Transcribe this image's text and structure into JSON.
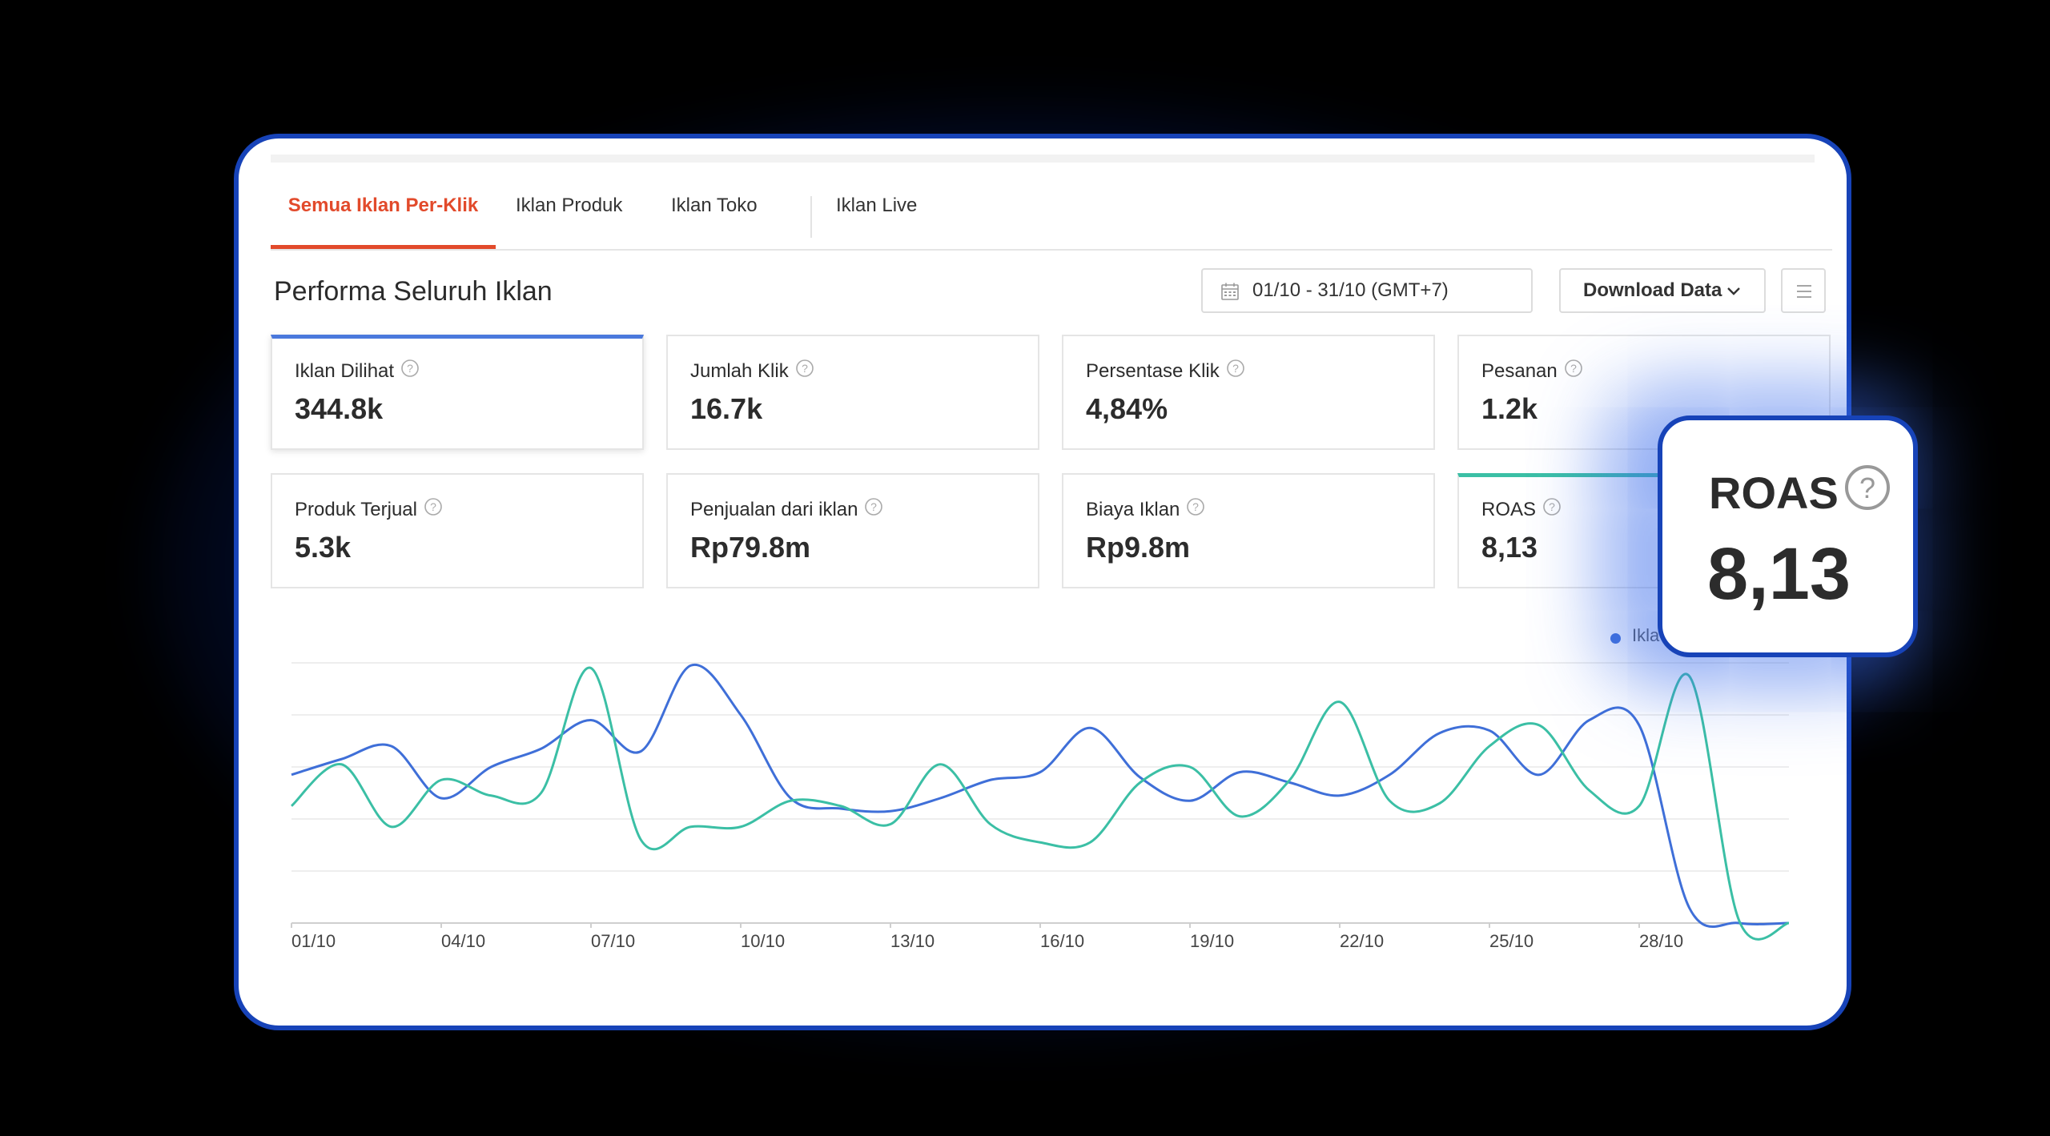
{
  "tabs": [
    {
      "label": "Semua Iklan Per-Klik",
      "active": true
    },
    {
      "label": "Iklan Produk"
    },
    {
      "label": "Iklan Toko"
    },
    {
      "label": "Iklan Live"
    }
  ],
  "header": {
    "title": "Performa Seluruh Iklan",
    "date_range": "01/10 - 31/10 (GMT+7)",
    "download_label": "Download Data"
  },
  "metrics": [
    {
      "label": "Iklan Dilihat",
      "value": "344.8k",
      "selected": "blue"
    },
    {
      "label": "Jumlah Klik",
      "value": "16.7k"
    },
    {
      "label": "Persentase Klik",
      "value": "4,84%"
    },
    {
      "label": "Pesanan",
      "value": "1.2k"
    },
    {
      "label": "Produk Terjual",
      "value": "5.3k"
    },
    {
      "label": "Penjualan dari iklan",
      "value": "Rp79.8m"
    },
    {
      "label": "Biaya Iklan",
      "value": "Rp9.8m"
    },
    {
      "label": "ROAS",
      "value": "8,13",
      "selected": "teal"
    }
  ],
  "legend": {
    "partial_label": "Ikla"
  },
  "popup": {
    "label": "ROAS",
    "value": "8,13"
  },
  "colors": {
    "accent": "#e24a2b",
    "series_blue": "#3f6fd8",
    "series_teal": "#3bbfa5",
    "frame": "#1743b8"
  },
  "chart_data": {
    "type": "line",
    "xlabel": "",
    "ylabel": "",
    "grid": true,
    "y_tick_labels_visible": false,
    "x_tick_labels": [
      "01/10",
      "04/10",
      "07/10",
      "10/10",
      "13/10",
      "16/10",
      "19/10",
      "22/10",
      "25/10",
      "28/10"
    ],
    "x": [
      1,
      2,
      3,
      4,
      5,
      6,
      7,
      8,
      9,
      10,
      11,
      12,
      13,
      14,
      15,
      16,
      17,
      18,
      19,
      20,
      21,
      22,
      23,
      24,
      25,
      26,
      27,
      28,
      29,
      30,
      31
    ],
    "ylim": [
      0,
      100
    ],
    "series": [
      {
        "color": "#3f6fd8",
        "values": [
          57,
          63,
          68,
          48,
          60,
          67,
          78,
          66,
          99,
          80,
          48,
          44,
          43,
          48,
          55,
          58,
          75,
          56,
          47,
          58,
          54,
          49,
          57,
          73,
          74,
          57,
          78,
          76,
          6,
          0,
          0
        ]
      },
      {
        "color": "#3bbfa5",
        "values": [
          45,
          61,
          37,
          55,
          49,
          50,
          98,
          32,
          37,
          37,
          47,
          45,
          38,
          61,
          38,
          31,
          31,
          54,
          60,
          41,
          55,
          85,
          47,
          46,
          68,
          76,
          51,
          45,
          95,
          1,
          0
        ]
      }
    ]
  }
}
